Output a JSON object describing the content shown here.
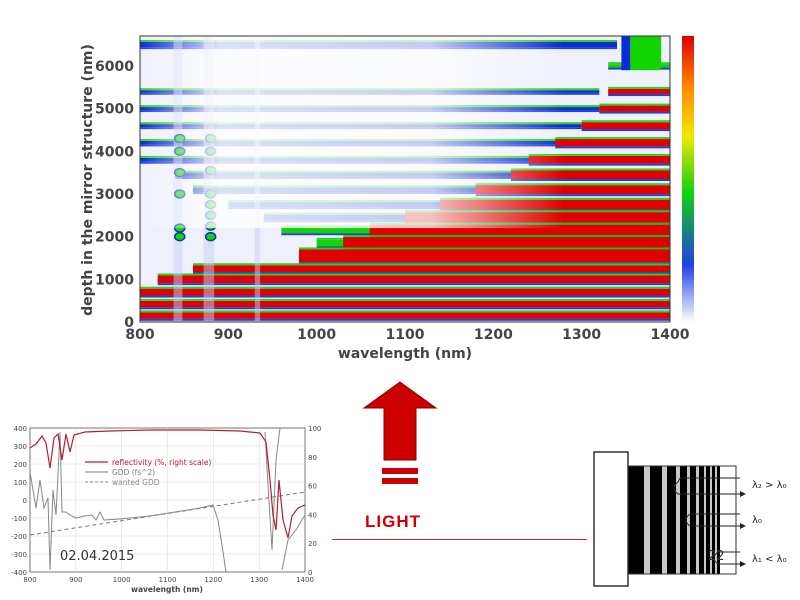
{
  "heatmap": {
    "ylabel": "depth in the mirror structure (nm)",
    "xlabel": "wavelength (nm)",
    "xticks": [
      "800",
      "900",
      "1000",
      "1100",
      "1200",
      "1300",
      "1400"
    ],
    "yticks": [
      "0",
      "1000",
      "2000",
      "3000",
      "4000",
      "5000",
      "6000"
    ],
    "colormap": [
      "#ffffff",
      "#0b2bd6",
      "#12d400",
      "#f2e600",
      "#ff8a00",
      "#e00000"
    ]
  },
  "arrow": {
    "color": "#cc0000"
  },
  "light_label": "LIGHT",
  "small_plot": {
    "legend": [
      {
        "label": "reflectivity (%, right scale)",
        "color": "#b22030"
      },
      {
        "label": "GDD (fs^2)",
        "color": "#7a7a7a"
      },
      {
        "label": "wanted GDD",
        "color": "#888888"
      }
    ],
    "left_ticks": [
      "400",
      "300",
      "200",
      "100",
      "0",
      "-100",
      "-200",
      "-300",
      "-400"
    ],
    "right_ticks": [
      "100",
      "80",
      "60",
      "40",
      "20",
      "0"
    ],
    "xticks": [
      "800",
      "900",
      "1000",
      "1100",
      "1200",
      "1300",
      "1400"
    ],
    "xlabel": "wavelength (nm)",
    "date": "02.04.2015"
  },
  "mirror": {
    "labels": [
      "λ₂ > λ₀",
      "λ₀",
      "λ₁ < λ₀"
    ],
    "page_number": "22"
  }
}
